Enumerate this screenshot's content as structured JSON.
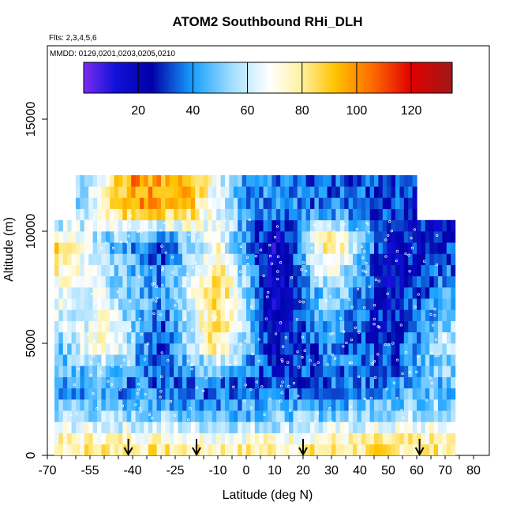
{
  "chart_data": {
    "type": "heatmap",
    "title": "ATOM2 Southbound RHi_DLH",
    "notes": [
      "Flts: 2,3,4,5,6",
      "MMDD: 0129,0201,0203,0205,0210"
    ],
    "xlabel": "Latitude (deg N)",
    "ylabel": "Altitude (m)",
    "xlim": [
      -70,
      80
    ],
    "ylim": [
      0,
      17500
    ],
    "x_ticks": [
      -70,
      -55,
      -40,
      -25,
      -10,
      0,
      10,
      20,
      30,
      40,
      50,
      60,
      70,
      80
    ],
    "y_ticks": [
      0,
      5000,
      10000,
      15000
    ],
    "colorbar": {
      "range": [
        0,
        135
      ],
      "ticks": [
        20,
        40,
        60,
        80,
        100,
        120
      ],
      "stops": [
        {
          "value": 0,
          "color": "#7a2cf0"
        },
        {
          "value": 12,
          "color": "#1010d8"
        },
        {
          "value": 25,
          "color": "#0000a8"
        },
        {
          "value": 40,
          "color": "#18a0ff"
        },
        {
          "value": 55,
          "color": "#a8e0ff"
        },
        {
          "value": 68,
          "color": "#ffffff"
        },
        {
          "value": 80,
          "color": "#fff0a0"
        },
        {
          "value": 92,
          "color": "#ffc400"
        },
        {
          "value": 105,
          "color": "#ff7000"
        },
        {
          "value": 120,
          "color": "#e00000"
        },
        {
          "value": 135,
          "color": "#a01818"
        }
      ]
    },
    "sounding_latitudes": [
      -41.5,
      -17.5,
      20,
      61
    ],
    "coverage": {
      "lat_min": -67.5,
      "lat_max": 73.5,
      "alt_max": 12500
    },
    "approx_rhi_profiles": [
      {
        "alt": 500,
        "lat": [
          -67,
          -50,
          -30,
          0,
          30,
          50,
          70
        ],
        "rhi": [
          78,
          82,
          80,
          78,
          80,
          82,
          80
        ]
      },
      {
        "alt": 1500,
        "lat": [
          -67,
          -50,
          -30,
          0,
          30,
          50,
          70
        ],
        "rhi": [
          60,
          58,
          55,
          52,
          55,
          60,
          62
        ]
      },
      {
        "alt": 3000,
        "lat": [
          -67,
          -50,
          -30,
          0,
          30,
          50,
          70
        ],
        "rhi": [
          40,
          38,
          35,
          30,
          35,
          40,
          45
        ]
      },
      {
        "alt": 5000,
        "lat": [
          -67,
          -50,
          -30,
          -10,
          10,
          30,
          50,
          70
        ],
        "rhi": [
          50,
          75,
          30,
          85,
          20,
          40,
          25,
          60
        ]
      },
      {
        "alt": 7500,
        "lat": [
          -67,
          -50,
          -30,
          -10,
          10,
          30,
          50,
          70
        ],
        "rhi": [
          70,
          60,
          40,
          90,
          15,
          60,
          20,
          40
        ]
      },
      {
        "alt": 9500,
        "lat": [
          -67,
          -50,
          -30,
          -10,
          10,
          30,
          50,
          70
        ],
        "rhi": [
          90,
          50,
          30,
          70,
          10,
          90,
          20,
          30
        ]
      },
      {
        "alt": 11000,
        "lat": [
          -67,
          -40,
          -20,
          0,
          30,
          55,
          70
        ],
        "rhi": [
          30,
          100,
          90,
          40,
          35,
          30,
          20
        ]
      }
    ]
  }
}
